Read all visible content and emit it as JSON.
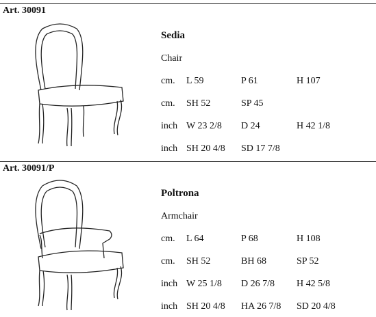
{
  "sections": [
    {
      "article": "Art. 30091",
      "name": "Sedia",
      "subtitle": "Chair",
      "rows": [
        [
          "cm.",
          "L 59",
          "P 61",
          "H 107"
        ],
        [
          "cm.",
          "SH 52",
          "SP 45"
        ],
        [
          "inch",
          "W 23 2/8",
          "D 24",
          "H 42 1/8"
        ],
        [
          "inch",
          "SH 20 4/8",
          "SD 17 7/8"
        ]
      ]
    },
    {
      "article": "Art. 30091/P",
      "name": "Poltrona",
      "subtitle": "Armchair",
      "rows": [
        [
          "cm.",
          "L 64",
          "P 68",
          "H 108"
        ],
        [
          "cm.",
          "SH 52",
          "BH 68",
          "SP 52"
        ],
        [
          "inch",
          "W 25 1/8",
          "D 26 7/8",
          "H 42 5/8"
        ],
        [
          "inch",
          "SH 20 4/8",
          "HA 26 7/8",
          "SD 20 4/8"
        ]
      ]
    }
  ]
}
